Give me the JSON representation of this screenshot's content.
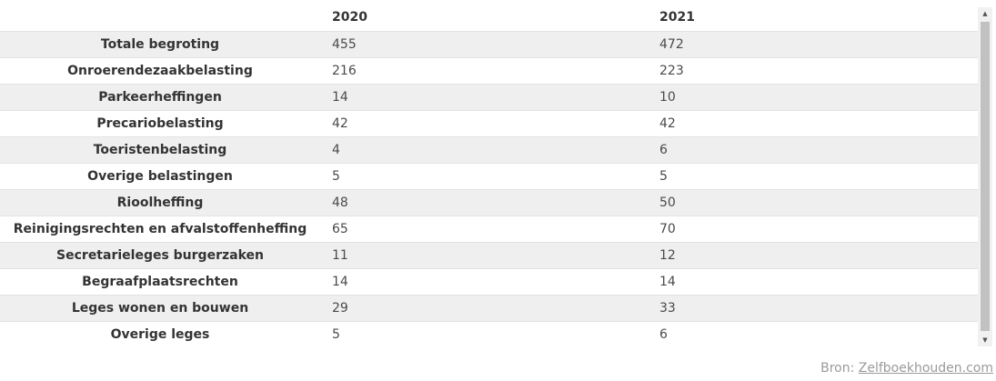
{
  "table": {
    "headers": [
      "",
      "2020",
      "2021"
    ],
    "rows": [
      {
        "label": "Totale begroting",
        "y2020": "455",
        "y2021": "472"
      },
      {
        "label": "Onroerendezaakbelasting",
        "y2020": "216",
        "y2021": "223"
      },
      {
        "label": "Parkeerheffingen",
        "y2020": "14",
        "y2021": "10"
      },
      {
        "label": "Precariobelasting",
        "y2020": "42",
        "y2021": "42"
      },
      {
        "label": "Toeristenbelasting",
        "y2020": "4",
        "y2021": "6"
      },
      {
        "label": "Overige belastingen",
        "y2020": "5",
        "y2021": "5"
      },
      {
        "label": "Rioolheffing",
        "y2020": "48",
        "y2021": "50"
      },
      {
        "label": "Reinigingsrechten en afvalstoffenheffing",
        "y2020": "65",
        "y2021": "70"
      },
      {
        "label": "Secretarieleges burgerzaken",
        "y2020": "11",
        "y2021": "12"
      },
      {
        "label": "Begraafplaatsrechten",
        "y2020": "14",
        "y2021": "14"
      },
      {
        "label": "Leges wonen en bouwen",
        "y2020": "29",
        "y2021": "33"
      },
      {
        "label": "Overige leges",
        "y2020": "5",
        "y2021": "6"
      }
    ]
  },
  "source": {
    "prefix": "Bron:",
    "link_text": "Zelfboekhouden.com"
  },
  "scrollbar": {
    "up_icon": "triangle-up",
    "down_icon": "triangle-down"
  }
}
